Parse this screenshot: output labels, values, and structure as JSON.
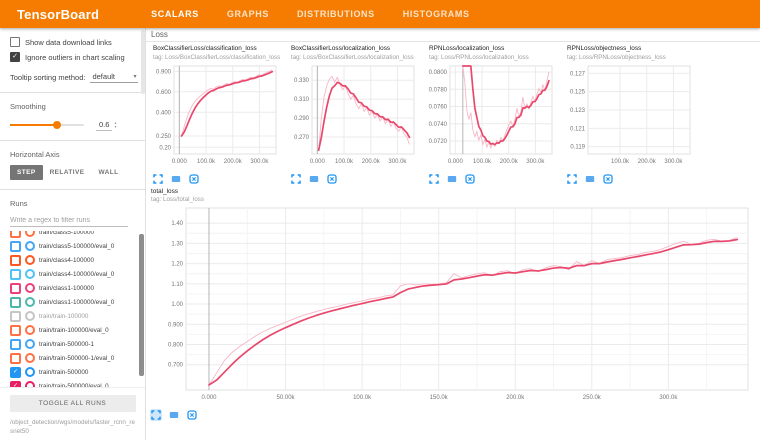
{
  "header": {
    "logo": "TensorBoard",
    "tabs": [
      {
        "label": "SCALARS",
        "active": true
      },
      {
        "label": "GRAPHS",
        "active": false
      },
      {
        "label": "DISTRIBUTIONS",
        "active": false
      },
      {
        "label": "HISTOGRAMS",
        "active": false
      }
    ]
  },
  "sidebar": {
    "show_download": {
      "label": "Show data download links",
      "checked": false
    },
    "ignore_outliers": {
      "label": "Ignore outliers in chart scaling",
      "checked": true
    },
    "tooltip_sort": {
      "label": "Tooltip sorting method:",
      "value": "default"
    },
    "smoothing": {
      "label": "Smoothing",
      "value": "0.6"
    },
    "haxis": {
      "label": "Horizontal Axis",
      "options": [
        {
          "label": "STEP",
          "selected": true
        },
        {
          "label": "RELATIVE",
          "selected": false
        },
        {
          "label": "WALL",
          "selected": false
        }
      ]
    },
    "runs": {
      "label": "Runs",
      "filter_placeholder": "Write a regex to filter runs",
      "toggle_all": "TOGGLE ALL RUNS",
      "path": "/object_detection/wgs/models/faster_rcnn_resnet50",
      "items": [
        {
          "name": "train/class5-100000",
          "color": "#ff7043",
          "checked": false
        },
        {
          "name": "train/class5-100000/eval_0",
          "color": "#42a5f5",
          "checked": false
        },
        {
          "name": "train/class4-100000",
          "color": "#ff5722",
          "checked": false
        },
        {
          "name": "train/class4-100000/eval_0",
          "color": "#4fc3f7",
          "checked": false
        },
        {
          "name": "train/class1-100000",
          "color": "#ec407a",
          "checked": false
        },
        {
          "name": "train/class1-100000/eval_0",
          "color": "#4db6ac",
          "checked": false
        },
        {
          "name": "train/train-100000",
          "color": "#c5c5c5",
          "checked": false
        },
        {
          "name": "train/train-100000/eval_0",
          "color": "#ff7043",
          "checked": false
        },
        {
          "name": "train/train-500000-1",
          "color": "#42a5f5",
          "checked": false
        },
        {
          "name": "train/train-500000-1/eval_0",
          "color": "#ff7043",
          "checked": false
        },
        {
          "name": "train/train-500000",
          "color": "#2196f3",
          "checked": true
        },
        {
          "name": "train/train-500000/eval_0",
          "color": "#e91e63",
          "checked": true
        }
      ]
    }
  },
  "main": {
    "category": "Loss"
  },
  "chart_data": [
    {
      "type": "line",
      "title": "BoxClassifierLoss/classification_loss",
      "tag": "tag: Loss/BoxClassifierLoss/classification_loss",
      "yscale": "log",
      "xlim": [
        -20000,
        362000
      ],
      "ylim": [
        0.175,
        1.0
      ],
      "x_ticks": [
        [
          0,
          "0.000"
        ],
        [
          100000,
          "100.0k"
        ],
        [
          200000,
          "200.0k"
        ],
        [
          300000,
          "300.0k"
        ]
      ],
      "y_ticks": [
        [
          0.9,
          "0.900"
        ],
        [
          0.6,
          "0.600"
        ],
        [
          0.4,
          "0.400"
        ],
        [
          0.25,
          "0.250"
        ],
        [
          0.2,
          "0.20"
        ]
      ],
      "vlines": [
        0
      ],
      "color": "#e8486c",
      "raw_color": "#f6b7c7",
      "smoothing": 0.6,
      "x_start": 8000,
      "x_step": 10000,
      "values": [
        0.25,
        0.3,
        0.355,
        0.41,
        0.455,
        0.495,
        0.525,
        0.55,
        0.575,
        0.6,
        0.625,
        0.64,
        0.63,
        0.66,
        0.675,
        0.665,
        0.69,
        0.705,
        0.695,
        0.72,
        0.735,
        0.725,
        0.75,
        0.765,
        0.755,
        0.78,
        0.8,
        0.79,
        0.815,
        0.84,
        0.83,
        0.86,
        0.88,
        0.9,
        0.925
      ]
    },
    {
      "type": "line",
      "title": "BoxClassifierLoss/localization_loss",
      "tag": "tag: Loss/BoxClassifierLoss/localization_loss",
      "yscale": "linear",
      "xlim": [
        -20000,
        362000
      ],
      "ylim": [
        0.252,
        0.345
      ],
      "x_ticks": [
        [
          0,
          "0.000"
        ],
        [
          100000,
          "100.0k"
        ],
        [
          200000,
          "200.0k"
        ],
        [
          300000,
          "300.0k"
        ]
      ],
      "y_ticks": [
        [
          0.33,
          "0.330"
        ],
        [
          0.31,
          "0.310"
        ],
        [
          0.29,
          "0.290"
        ],
        [
          0.27,
          "0.270"
        ]
      ],
      "vlines": [
        0
      ],
      "color": "#e8486c",
      "raw_color": "#f6b7c7",
      "smoothing": 0.6,
      "x_start": 5000,
      "x_step": 10000,
      "values": [
        0.256,
        0.29,
        0.312,
        0.324,
        0.331,
        0.334,
        0.328,
        0.333,
        0.325,
        0.32,
        0.324,
        0.316,
        0.31,
        0.314,
        0.305,
        0.3,
        0.305,
        0.297,
        0.301,
        0.293,
        0.297,
        0.29,
        0.294,
        0.287,
        0.291,
        0.284,
        0.289,
        0.281,
        0.286,
        0.279,
        0.276,
        0.281,
        0.273,
        0.27,
        0.262
      ]
    },
    {
      "type": "line",
      "title": "RPNLoss/localization_loss",
      "tag": "tag: Loss/RPNLoss/localization_loss",
      "yscale": "linear",
      "xlim": [
        -20000,
        362000
      ],
      "ylim": [
        0.0705,
        0.0807
      ],
      "x_ticks": [
        [
          0,
          "0.000"
        ],
        [
          100000,
          "100.0k"
        ],
        [
          200000,
          "200.0k"
        ],
        [
          300000,
          "300.0k"
        ]
      ],
      "y_ticks": [
        [
          0.08,
          "0.0800"
        ],
        [
          0.078,
          "0.0780"
        ],
        [
          0.076,
          "0.0760"
        ],
        [
          0.074,
          "0.0740"
        ],
        [
          0.072,
          "0.0720"
        ]
      ],
      "vlines": [
        28000
      ],
      "color": "#e8486c",
      "raw_color": "#f6b7c7",
      "smoothing": 0.6,
      "x_start": 28000,
      "x_step": 7500,
      "values": [
        0.12,
        0.0788,
        0.0756,
        0.0745,
        0.0753,
        0.0733,
        0.0725,
        0.0731,
        0.0721,
        0.0727,
        0.0716,
        0.0722,
        0.0713,
        0.0719,
        0.0712,
        0.0718,
        0.0714,
        0.0721,
        0.0717,
        0.0724,
        0.072,
        0.0727,
        0.0733,
        0.0739,
        0.0743,
        0.0737,
        0.0745,
        0.0758,
        0.0748,
        0.0754,
        0.0771,
        0.0758,
        0.0763,
        0.0757,
        0.0765,
        0.0772,
        0.0766,
        0.0774,
        0.0781,
        0.0776,
        0.0785,
        0.0779,
        0.079,
        0.08
      ]
    },
    {
      "type": "line",
      "title": "RPNLoss/objectness_loss",
      "tag": "tag: Loss/RPNLoss/objectness_loss",
      "yscale": "linear",
      "xlim": [
        -20000,
        362000
      ],
      "ylim": [
        0.1182,
        0.1278
      ],
      "x_ticks": [
        [
          100000,
          "100.0k"
        ],
        [
          200000,
          "200.0k"
        ],
        [
          300000,
          "300.0k"
        ]
      ],
      "y_ticks": [
        [
          0.127,
          "0.127"
        ],
        [
          0.125,
          "0.125"
        ],
        [
          0.123,
          "0.123"
        ],
        [
          0.121,
          "0.121"
        ],
        [
          0.119,
          "0.119"
        ]
      ],
      "vlines": [],
      "color": "#e8486c",
      "raw_color": "#f6b7c7",
      "smoothing": 0.6,
      "x_start": 0,
      "x_step": 10000,
      "values": []
    },
    {
      "type": "line",
      "title": "total_loss",
      "tag": "tag: Loss/total_loss",
      "yscale": "linear",
      "xlim": [
        -15000,
        352000
      ],
      "ylim": [
        0.575,
        1.475
      ],
      "x_ticks": [
        [
          0,
          "0.000"
        ],
        [
          50000,
          "50.00k"
        ],
        [
          100000,
          "100.0k"
        ],
        [
          150000,
          "150.0k"
        ],
        [
          200000,
          "200.0k"
        ],
        [
          250000,
          "250.0k"
        ],
        [
          300000,
          "300.0k"
        ]
      ],
      "y_ticks": [
        [
          1.4,
          "1.40"
        ],
        [
          1.3,
          "1.30"
        ],
        [
          1.2,
          "1.20"
        ],
        [
          1.1,
          "1.10"
        ],
        [
          1.0,
          "1.00"
        ],
        [
          0.9,
          "0.900"
        ],
        [
          0.8,
          "0.800"
        ],
        [
          0.7,
          "0.700"
        ]
      ],
      "vlines": [
        0
      ],
      "minor": true,
      "color": "#e8486c",
      "raw_color": "#f6b7c7",
      "smoothing": 0.6,
      "x_start": 0,
      "x_step": 5000,
      "values": [
        0.6,
        0.66,
        0.72,
        0.76,
        0.79,
        0.815,
        0.84,
        0.862,
        0.88,
        0.895,
        0.91,
        0.925,
        0.94,
        0.952,
        0.963,
        0.973,
        0.982,
        0.99,
        1.0,
        1.008,
        1.015,
        1.025,
        1.03,
        1.04,
        1.045,
        1.09,
        1.1,
        1.095,
        1.1,
        1.098,
        1.1,
        1.105,
        1.15,
        1.13,
        1.14,
        1.15,
        1.155,
        1.14,
        1.16,
        1.165,
        1.15,
        1.17,
        1.175,
        1.16,
        1.18,
        1.19,
        1.185,
        1.17,
        1.21,
        1.19,
        1.215,
        1.2,
        1.22,
        1.225,
        1.23,
        1.24,
        1.245,
        1.255,
        1.26,
        1.27,
        1.285,
        1.3,
        1.31,
        1.295,
        1.3,
        1.315,
        1.32,
        1.31,
        1.315,
        1.33
      ]
    }
  ]
}
